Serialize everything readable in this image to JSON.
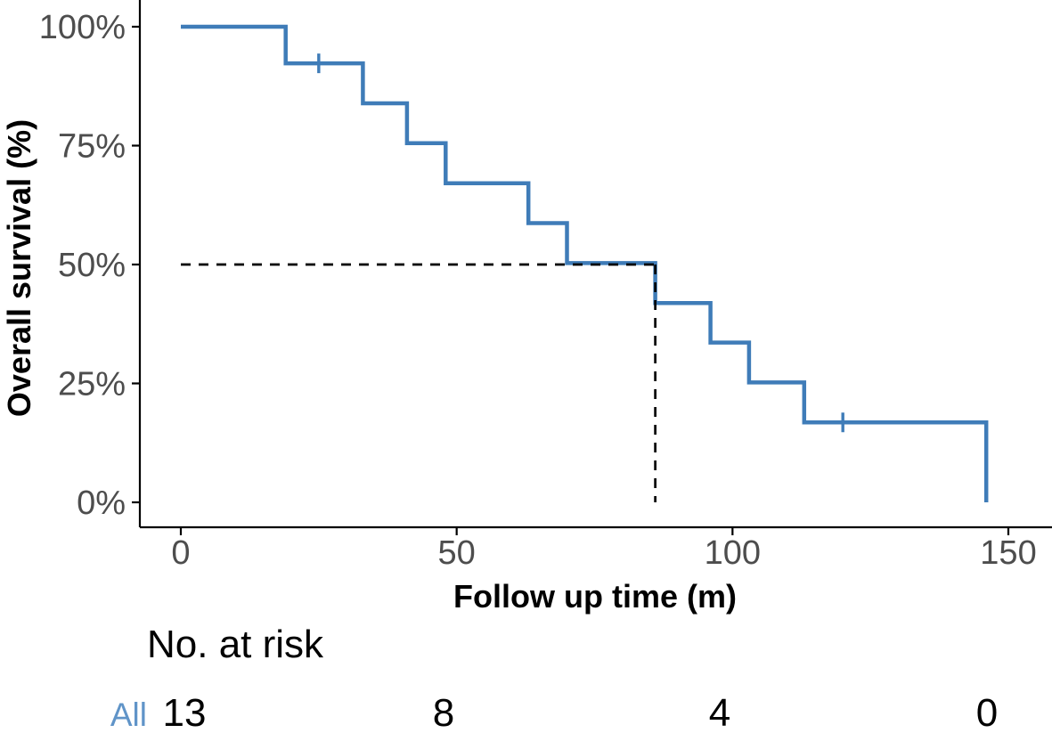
{
  "figure": {
    "background": "#ffffff"
  },
  "chart_data": {
    "type": "line",
    "subtype": "kaplan-meier-step",
    "title": "",
    "xlabel": "Follow up time (m)",
    "ylabel": "Overall survival (%)",
    "xlim": [
      0,
      150
    ],
    "ylim": [
      0,
      100
    ],
    "grid": false,
    "legend": "none",
    "x_ticks": [
      {
        "value": 0,
        "label": "0"
      },
      {
        "value": 50,
        "label": "50"
      },
      {
        "value": 100,
        "label": "100"
      },
      {
        "value": 150,
        "label": "150"
      }
    ],
    "y_ticks": [
      {
        "value": 0,
        "label": "0%"
      },
      {
        "value": 25,
        "label": "25%"
      },
      {
        "value": 50,
        "label": "50%"
      },
      {
        "value": 75,
        "label": "75%"
      },
      {
        "value": 100,
        "label": "100%"
      }
    ],
    "axis_color": "#000000",
    "tick_label_color": "#4d4d4d",
    "series": [
      {
        "name": "All",
        "color": "#3f7cb8",
        "step_points": [
          [
            0,
            100
          ],
          [
            19,
            92.3
          ],
          [
            33,
            83.9
          ],
          [
            41,
            75.5
          ],
          [
            48,
            67.1
          ],
          [
            63,
            58.7
          ],
          [
            70,
            50.3
          ],
          [
            86,
            41.9
          ],
          [
            96,
            33.6
          ],
          [
            103,
            25.2
          ],
          [
            113,
            16.8
          ],
          [
            146,
            0
          ]
        ],
        "censor_marks": [
          [
            25,
            92.3
          ],
          [
            120,
            16.8
          ]
        ]
      }
    ],
    "median_line": {
      "time": 86,
      "survival": 50,
      "style": "dashed",
      "color": "#000000"
    },
    "risk_table": {
      "title": "No. at risk",
      "row_label": "All",
      "row_label_color": "#6094c8",
      "times": [
        0,
        50,
        100,
        150
      ],
      "counts": [
        "13",
        "8",
        "4",
        "0"
      ]
    }
  }
}
